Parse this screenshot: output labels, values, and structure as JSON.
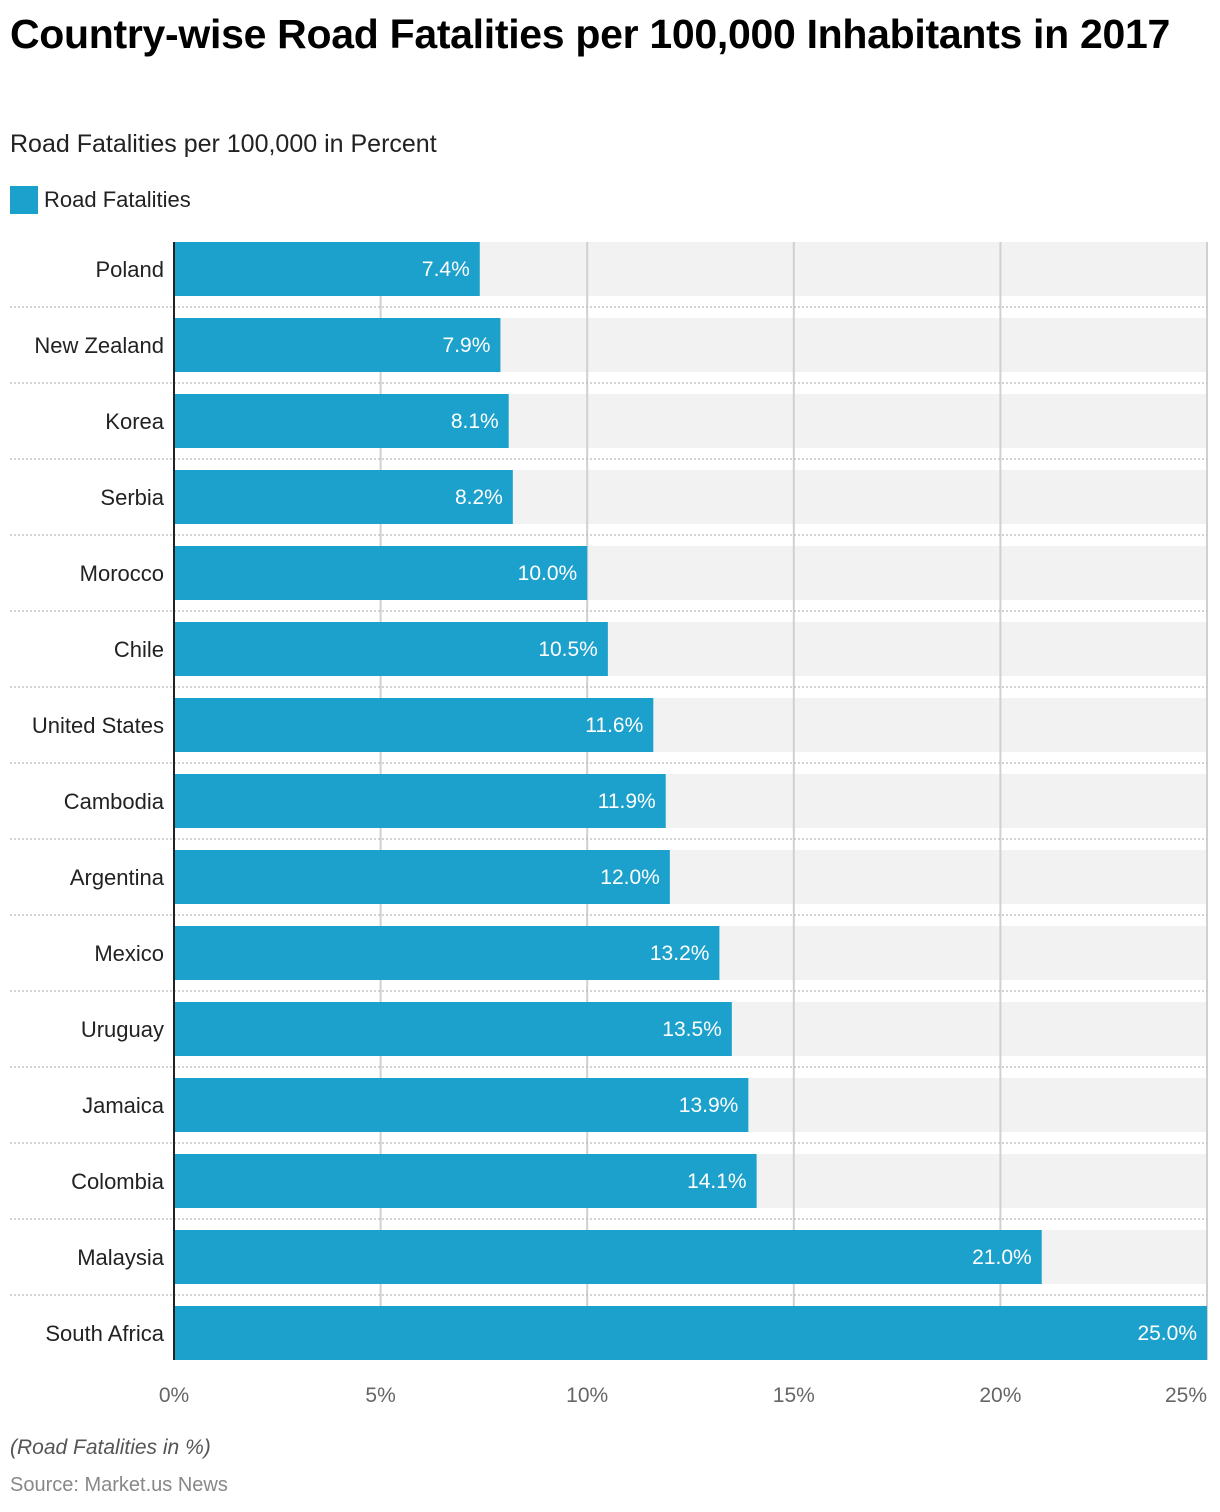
{
  "header": {
    "title": "Country-wise Road Fatalities per 100,000 Inhabitants in 2017",
    "subtitle": "Road Fatalities per 100,000 in Percent"
  },
  "legend": {
    "label": "Road Fatalities",
    "color": "#1ba1cc"
  },
  "footer": {
    "note": "(Road Fatalities in %)",
    "source": "Source: Market.us News"
  },
  "colors": {
    "bar": "#1ba1cc",
    "track": "#f2f2f2",
    "grid": "#d0d0d0",
    "axis": "#222222"
  },
  "chart_data": {
    "type": "bar",
    "orientation": "horizontal",
    "title": "Country-wise Road Fatalities per 100,000 Inhabitants in 2017",
    "subtitle": "Road Fatalities per 100,000 in Percent",
    "xlabel": "",
    "ylabel": "",
    "xlim": [
      0,
      25
    ],
    "xticks": [
      0,
      5,
      10,
      15,
      20,
      25
    ],
    "xtick_labels": [
      "0%",
      "5%",
      "10%",
      "15%",
      "20%",
      "25%"
    ],
    "grid": true,
    "legend_position": "top-left",
    "categories": [
      "Poland",
      "New Zealand",
      "Korea",
      "Serbia",
      "Morocco",
      "Chile",
      "United States",
      "Cambodia",
      "Argentina",
      "Mexico",
      "Uruguay",
      "Jamaica",
      "Colombia",
      "Malaysia",
      "South Africa"
    ],
    "series": [
      {
        "name": "Road Fatalities",
        "values": [
          7.4,
          7.9,
          8.1,
          8.2,
          10.0,
          10.5,
          11.6,
          11.9,
          12.0,
          13.2,
          13.5,
          13.9,
          14.1,
          21.0,
          25.0
        ],
        "labels": [
          "7.4%",
          "7.9%",
          "8.1%",
          "8.2%",
          "10.0%",
          "10.5%",
          "11.6%",
          "11.9%",
          "12.0%",
          "13.2%",
          "13.5%",
          "13.9%",
          "14.1%",
          "21.0%",
          "25.0%"
        ]
      }
    ]
  }
}
